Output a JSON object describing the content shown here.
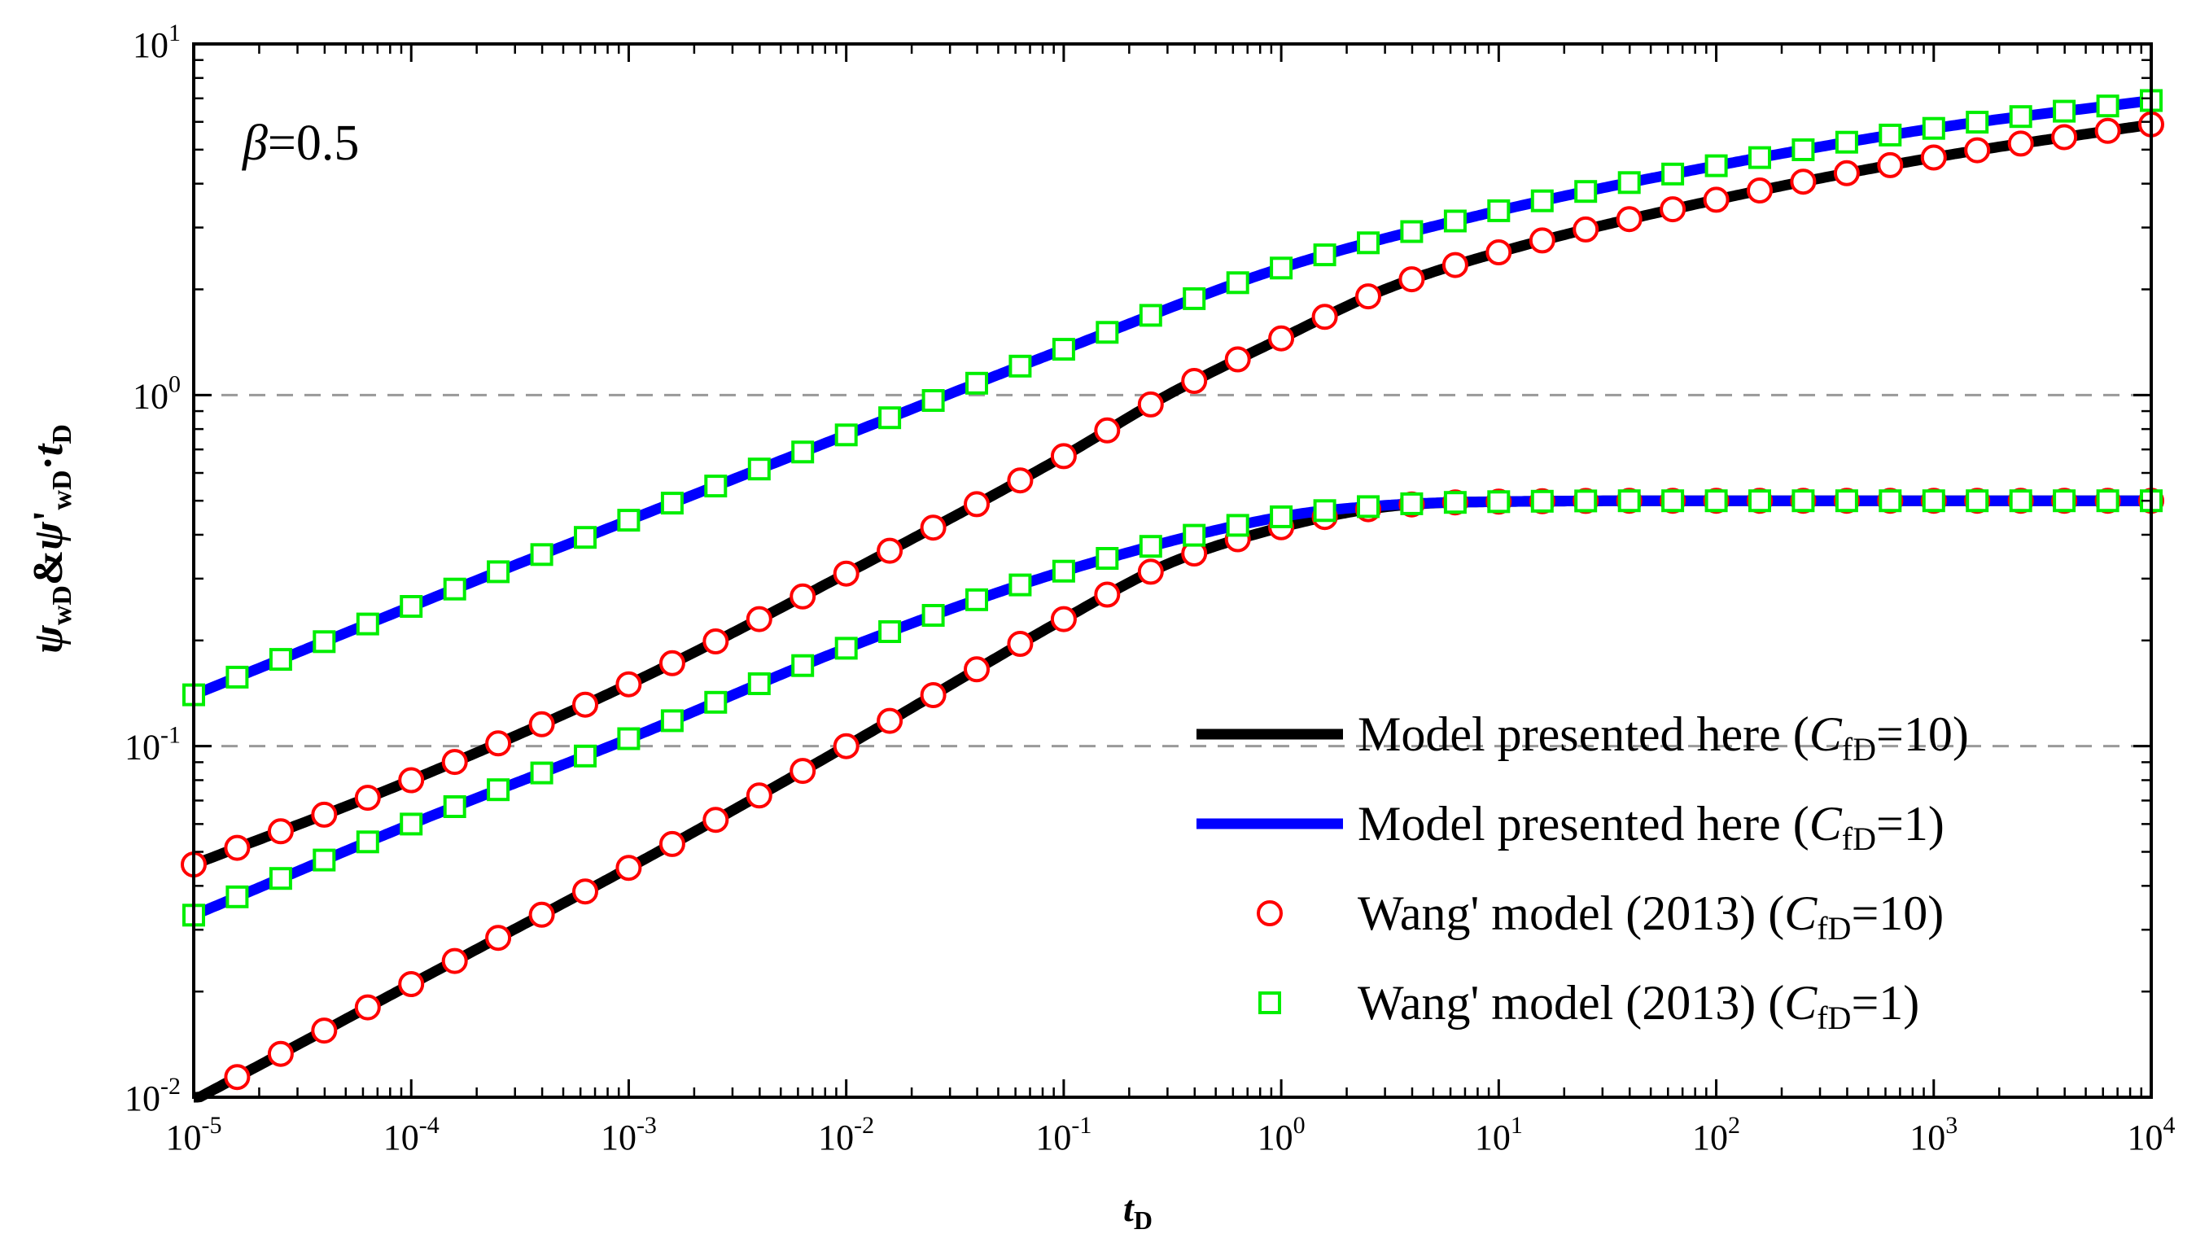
{
  "chart_data": {
    "type": "line",
    "x_scale": "log",
    "y_scale": "log",
    "xlim": [
      1e-05,
      10000
    ],
    "ylim": [
      0.01,
      10
    ],
    "xlabel": {
      "base": "t",
      "sub": "D"
    },
    "ylabel": {
      "psi": "ψ",
      "sub1": "wD",
      "amp": "&",
      "prime": "'",
      "sub2": "wD",
      "dot": "·",
      "t": "t",
      "sub3": "D"
    },
    "annotation": {
      "beta": "β",
      "text": "=0.5"
    },
    "x_ticks": [
      {
        "base": "10",
        "exp": "-5"
      },
      {
        "base": "10",
        "exp": "-4"
      },
      {
        "base": "10",
        "exp": "-3"
      },
      {
        "base": "10",
        "exp": "-2"
      },
      {
        "base": "10",
        "exp": "-1"
      },
      {
        "base": "10",
        "exp": "0"
      },
      {
        "base": "10",
        "exp": "1"
      },
      {
        "base": "10",
        "exp": "2"
      },
      {
        "base": "10",
        "exp": "3"
      },
      {
        "base": "10",
        "exp": "4"
      }
    ],
    "y_ticks": [
      {
        "base": "10",
        "exp": "-2"
      },
      {
        "base": "10",
        "exp": "-1"
      },
      {
        "base": "10",
        "exp": "0"
      },
      {
        "base": "10",
        "exp": "1"
      }
    ],
    "reference_lines": [
      0.1,
      1
    ],
    "legend": {
      "position": "lower-right",
      "entries": [
        {
          "pre": "Model presented here (",
          "var": "C",
          "sub": "fD",
          "post": "=10)",
          "marker": "line",
          "color": "#000000"
        },
        {
          "pre": "Model presented here (",
          "var": "C",
          "sub": "fD",
          "post": "=1)",
          "marker": "line",
          "color": "#0000ff"
        },
        {
          "pre": "Wang' model (2013)  (",
          "var": "C",
          "sub": "fD",
          "post": "=10)",
          "marker": "circle",
          "color": "#ff0000"
        },
        {
          "pre": "Wang' model (2013)  (",
          "var": "C",
          "sub": "fD",
          "post": "=1)",
          "marker": "square",
          "color": "#00ee00"
        }
      ]
    },
    "series": [
      {
        "name": "Model presented here (CfD=10) pressure",
        "style": "line",
        "color": "#000000",
        "x": [
          1e-05,
          0.0001,
          0.001,
          0.01,
          0.1,
          0.3,
          1,
          3,
          10,
          100,
          1000,
          10000
        ],
        "y": [
          0.046,
          0.08,
          0.15,
          0.31,
          0.67,
          1.0,
          1.45,
          2.0,
          2.55,
          3.6,
          4.75,
          5.9
        ]
      },
      {
        "name": "Model presented here (CfD=10) derivative",
        "style": "line",
        "color": "#000000",
        "x": [
          1e-05,
          0.0001,
          0.001,
          0.01,
          0.1,
          0.3,
          1,
          3,
          10,
          100,
          1000,
          10000
        ],
        "y": [
          0.0098,
          0.021,
          0.045,
          0.1,
          0.23,
          0.33,
          0.42,
          0.48,
          0.497,
          0.5,
          0.5,
          0.5
        ]
      },
      {
        "name": "Model presented here (CfD=1) pressure",
        "style": "line",
        "color": "#0000ff",
        "x": [
          1e-05,
          0.0001,
          0.001,
          0.01,
          0.1,
          1,
          10,
          100,
          1000,
          10000
        ],
        "y": [
          0.14,
          0.25,
          0.44,
          0.77,
          1.35,
          2.3,
          3.35,
          4.5,
          5.75,
          6.9
        ]
      },
      {
        "name": "Model presented here (CfD=1) derivative",
        "style": "line",
        "color": "#0000ff",
        "x": [
          1e-05,
          0.0001,
          0.001,
          0.01,
          0.1,
          1,
          3,
          10,
          100,
          1000,
          10000
        ],
        "y": [
          0.033,
          0.06,
          0.105,
          0.19,
          0.315,
          0.45,
          0.485,
          0.497,
          0.5,
          0.5,
          0.5
        ]
      },
      {
        "name": "Wang' model (2013) (CfD=10) pressure",
        "style": "marker",
        "marker": "circle",
        "color": "#ff0000",
        "x": [
          1e-05,
          0.0001,
          0.001,
          0.01,
          0.1,
          0.3,
          1,
          3,
          10,
          100,
          1000,
          10000
        ],
        "y": [
          0.046,
          0.08,
          0.15,
          0.31,
          0.67,
          1.0,
          1.45,
          2.0,
          2.55,
          3.6,
          4.75,
          5.9
        ]
      },
      {
        "name": "Wang' model (2013) (CfD=10) derivative",
        "style": "marker",
        "marker": "circle",
        "color": "#ff0000",
        "x": [
          1e-05,
          0.0001,
          0.001,
          0.01,
          0.1,
          0.3,
          1,
          3,
          10,
          100,
          1000,
          10000
        ],
        "y": [
          0.0098,
          0.021,
          0.045,
          0.1,
          0.23,
          0.33,
          0.42,
          0.48,
          0.497,
          0.5,
          0.5,
          0.5
        ]
      },
      {
        "name": "Wang' model (2013) (CfD=1) pressure",
        "style": "marker",
        "marker": "square",
        "color": "#00ee00",
        "x": [
          1e-05,
          0.0001,
          0.001,
          0.01,
          0.1,
          1,
          10,
          100,
          1000,
          10000
        ],
        "y": [
          0.14,
          0.25,
          0.44,
          0.77,
          1.35,
          2.3,
          3.35,
          4.5,
          5.75,
          6.9
        ]
      },
      {
        "name": "Wang' model (2013) (CfD=1) derivative",
        "style": "marker",
        "marker": "square",
        "color": "#00ee00",
        "x": [
          1e-05,
          0.0001,
          0.001,
          0.01,
          0.1,
          1,
          3,
          10,
          100,
          1000,
          10000
        ],
        "y": [
          0.033,
          0.06,
          0.105,
          0.19,
          0.315,
          0.45,
          0.485,
          0.497,
          0.5,
          0.5,
          0.5
        ]
      }
    ]
  }
}
